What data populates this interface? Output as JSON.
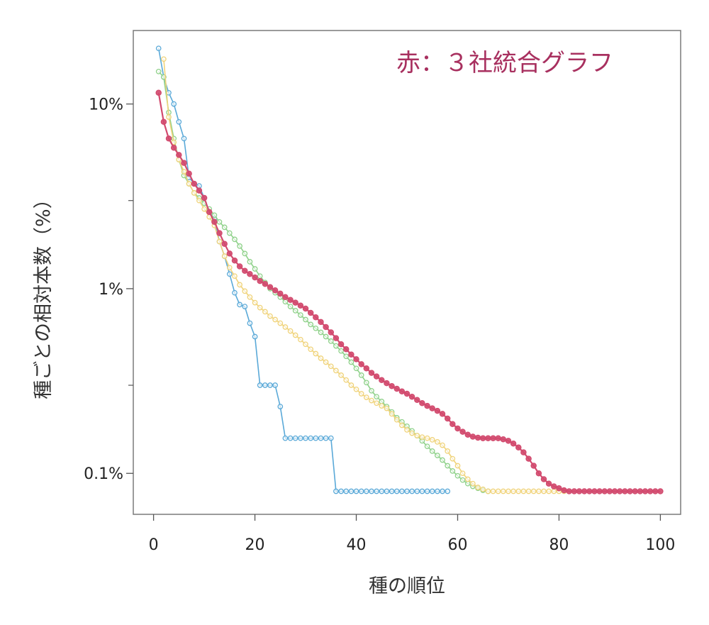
{
  "chart_data": {
    "type": "line",
    "title": "",
    "annotation": "赤：３社統合グラフ",
    "annotation_color": "#a8305f",
    "xlabel": "種の順位",
    "ylabel": "種ごとの相対本数（%）",
    "xlim": [
      -4,
      104
    ],
    "ylim": [
      0.06,
      25
    ],
    "yscale": "log",
    "xticks": [
      0,
      20,
      40,
      60,
      80,
      100
    ],
    "xtick_labels": [
      "0",
      "20",
      "40",
      "60",
      "80",
      "100"
    ],
    "yticks": [
      0.1,
      1,
      10
    ],
    "ytick_labels": [
      "0.1%",
      "1%",
      "10%"
    ],
    "grid": false,
    "series": [
      {
        "color": "#5aa9d8",
        "points": [
          [
            1,
            20
          ],
          [
            2,
            14
          ],
          [
            3,
            11.5
          ],
          [
            4,
            10
          ],
          [
            5,
            8
          ],
          [
            6,
            6.5
          ],
          [
            7,
            4
          ],
          [
            8,
            3.7
          ],
          [
            9,
            3.6
          ],
          [
            10,
            3.1
          ],
          [
            11,
            2.6
          ],
          [
            12,
            2.4
          ],
          [
            13,
            1.8
          ],
          [
            14,
            1.5
          ],
          [
            15,
            1.2
          ],
          [
            16,
            0.95
          ],
          [
            17,
            0.82
          ],
          [
            18,
            0.8
          ],
          [
            19,
            0.65
          ],
          [
            20,
            0.55
          ],
          [
            21,
            0.3
          ],
          [
            22,
            0.3
          ],
          [
            23,
            0.3
          ],
          [
            24,
            0.3
          ],
          [
            25,
            0.23
          ],
          [
            26,
            0.155
          ],
          [
            27,
            0.155
          ],
          [
            28,
            0.155
          ],
          [
            29,
            0.155
          ],
          [
            30,
            0.155
          ],
          [
            31,
            0.155
          ],
          [
            32,
            0.155
          ],
          [
            33,
            0.155
          ],
          [
            34,
            0.155
          ],
          [
            35,
            0.155
          ],
          [
            36,
            0.08
          ],
          [
            37,
            0.08
          ],
          [
            38,
            0.08
          ],
          [
            39,
            0.08
          ],
          [
            40,
            0.08
          ],
          [
            41,
            0.08
          ],
          [
            42,
            0.08
          ],
          [
            43,
            0.08
          ],
          [
            44,
            0.08
          ],
          [
            45,
            0.08
          ],
          [
            46,
            0.08
          ],
          [
            47,
            0.08
          ],
          [
            48,
            0.08
          ],
          [
            49,
            0.08
          ],
          [
            50,
            0.08
          ],
          [
            51,
            0.08
          ],
          [
            52,
            0.08
          ],
          [
            53,
            0.08
          ],
          [
            54,
            0.08
          ],
          [
            55,
            0.08
          ],
          [
            56,
            0.08
          ],
          [
            57,
            0.08
          ],
          [
            58,
            0.08
          ]
        ]
      },
      {
        "color": "#8fd18a",
        "points": [
          [
            1,
            15
          ],
          [
            2,
            14
          ],
          [
            3,
            9
          ],
          [
            4,
            6.5
          ],
          [
            5,
            5
          ],
          [
            6,
            4.1
          ],
          [
            7,
            3.7
          ],
          [
            8,
            3.3
          ],
          [
            9,
            3.1
          ],
          [
            10,
            2.9
          ],
          [
            11,
            2.7
          ],
          [
            12,
            2.5
          ],
          [
            13,
            2.3
          ],
          [
            14,
            2.15
          ],
          [
            15,
            2.0
          ],
          [
            16,
            1.85
          ],
          [
            17,
            1.7
          ],
          [
            18,
            1.55
          ],
          [
            19,
            1.4
          ],
          [
            20,
            1.28
          ],
          [
            21,
            1.17
          ],
          [
            22,
            1.08
          ],
          [
            23,
            1.0
          ],
          [
            24,
            0.95
          ],
          [
            25,
            0.9
          ],
          [
            26,
            0.85
          ],
          [
            27,
            0.8
          ],
          [
            28,
            0.76
          ],
          [
            29,
            0.72
          ],
          [
            30,
            0.68
          ],
          [
            31,
            0.64
          ],
          [
            32,
            0.61
          ],
          [
            33,
            0.58
          ],
          [
            34,
            0.55
          ],
          [
            35,
            0.52
          ],
          [
            36,
            0.49
          ],
          [
            37,
            0.46
          ],
          [
            38,
            0.43
          ],
          [
            39,
            0.4
          ],
          [
            40,
            0.37
          ],
          [
            41,
            0.34
          ],
          [
            42,
            0.31
          ],
          [
            43,
            0.28
          ],
          [
            44,
            0.26
          ],
          [
            45,
            0.245
          ],
          [
            46,
            0.23
          ],
          [
            47,
            0.215
          ],
          [
            48,
            0.2
          ],
          [
            49,
            0.19
          ],
          [
            50,
            0.18
          ],
          [
            51,
            0.17
          ],
          [
            52,
            0.16
          ],
          [
            53,
            0.15
          ],
          [
            54,
            0.14
          ],
          [
            55,
            0.132
          ],
          [
            56,
            0.125
          ],
          [
            57,
            0.118
          ],
          [
            58,
            0.11
          ],
          [
            59,
            0.103
          ],
          [
            60,
            0.097
          ],
          [
            61,
            0.092
          ],
          [
            62,
            0.088
          ],
          [
            63,
            0.085
          ],
          [
            64,
            0.083
          ],
          [
            65,
            0.081
          ],
          [
            66,
            0.08
          ]
        ]
      },
      {
        "color": "#f0d37a",
        "points": [
          [
            2,
            17.5
          ],
          [
            3,
            8.5
          ],
          [
            4,
            6.2
          ],
          [
            5,
            5.0
          ],
          [
            6,
            4.3
          ],
          [
            7,
            3.7
          ],
          [
            8,
            3.3
          ],
          [
            9,
            3.0
          ],
          [
            10,
            2.7
          ],
          [
            11,
            2.45
          ],
          [
            12,
            2.2
          ],
          [
            13,
            1.8
          ],
          [
            14,
            1.5
          ],
          [
            15,
            1.3
          ],
          [
            16,
            1.17
          ],
          [
            17,
            1.05
          ],
          [
            18,
            0.97
          ],
          [
            19,
            0.9
          ],
          [
            20,
            0.84
          ],
          [
            21,
            0.79
          ],
          [
            22,
            0.75
          ],
          [
            23,
            0.71
          ],
          [
            24,
            0.68
          ],
          [
            25,
            0.65
          ],
          [
            26,
            0.62
          ],
          [
            27,
            0.59
          ],
          [
            28,
            0.56
          ],
          [
            29,
            0.53
          ],
          [
            30,
            0.5
          ],
          [
            31,
            0.47
          ],
          [
            32,
            0.445
          ],
          [
            33,
            0.42
          ],
          [
            34,
            0.4
          ],
          [
            35,
            0.38
          ],
          [
            36,
            0.36
          ],
          [
            37,
            0.34
          ],
          [
            38,
            0.32
          ],
          [
            39,
            0.3
          ],
          [
            40,
            0.285
          ],
          [
            41,
            0.27
          ],
          [
            42,
            0.258
          ],
          [
            43,
            0.248
          ],
          [
            44,
            0.24
          ],
          [
            45,
            0.232
          ],
          [
            46,
            0.225
          ],
          [
            47,
            0.21
          ],
          [
            48,
            0.195
          ],
          [
            49,
            0.182
          ],
          [
            50,
            0.172
          ],
          [
            51,
            0.165
          ],
          [
            52,
            0.16
          ],
          [
            53,
            0.157
          ],
          [
            54,
            0.155
          ],
          [
            55,
            0.152
          ],
          [
            56,
            0.148
          ],
          [
            57,
            0.142
          ],
          [
            58,
            0.132
          ],
          [
            59,
            0.12
          ],
          [
            60,
            0.11
          ],
          [
            61,
            0.1
          ],
          [
            62,
            0.093
          ],
          [
            63,
            0.088
          ],
          [
            64,
            0.084
          ],
          [
            65,
            0.082
          ],
          [
            66,
            0.08
          ],
          [
            67,
            0.08
          ],
          [
            68,
            0.08
          ],
          [
            69,
            0.08
          ],
          [
            70,
            0.08
          ],
          [
            71,
            0.08
          ],
          [
            72,
            0.08
          ],
          [
            73,
            0.08
          ],
          [
            74,
            0.08
          ],
          [
            75,
            0.08
          ],
          [
            76,
            0.08
          ],
          [
            77,
            0.08
          ],
          [
            78,
            0.08
          ],
          [
            79,
            0.08
          ],
          [
            80,
            0.08
          ],
          [
            81,
            0.08
          ]
        ]
      },
      {
        "color": "#d24a6e",
        "points": [
          [
            1,
            11.5
          ],
          [
            2,
            8
          ],
          [
            3,
            6.5
          ],
          [
            4,
            5.8
          ],
          [
            5,
            5.3
          ],
          [
            6,
            4.8
          ],
          [
            7,
            4.2
          ],
          [
            8,
            3.7
          ],
          [
            9,
            3.4
          ],
          [
            10,
            3.1
          ],
          [
            11,
            2.6
          ],
          [
            12,
            2.3
          ],
          [
            13,
            2.0
          ],
          [
            14,
            1.75
          ],
          [
            15,
            1.55
          ],
          [
            16,
            1.42
          ],
          [
            17,
            1.32
          ],
          [
            18,
            1.25
          ],
          [
            19,
            1.2
          ],
          [
            20,
            1.15
          ],
          [
            21,
            1.1
          ],
          [
            22,
            1.06
          ],
          [
            23,
            1.02
          ],
          [
            24,
            0.98
          ],
          [
            25,
            0.94
          ],
          [
            26,
            0.9
          ],
          [
            27,
            0.87
          ],
          [
            28,
            0.84
          ],
          [
            29,
            0.81
          ],
          [
            30,
            0.78
          ],
          [
            31,
            0.74
          ],
          [
            32,
            0.7
          ],
          [
            33,
            0.66
          ],
          [
            34,
            0.62
          ],
          [
            35,
            0.58
          ],
          [
            36,
            0.54
          ],
          [
            37,
            0.5
          ],
          [
            38,
            0.47
          ],
          [
            39,
            0.44
          ],
          [
            40,
            0.415
          ],
          [
            41,
            0.39
          ],
          [
            42,
            0.37
          ],
          [
            43,
            0.35
          ],
          [
            44,
            0.335
          ],
          [
            45,
            0.32
          ],
          [
            46,
            0.308
          ],
          [
            47,
            0.297
          ],
          [
            48,
            0.287
          ],
          [
            49,
            0.278
          ],
          [
            50,
            0.27
          ],
          [
            51,
            0.26
          ],
          [
            52,
            0.25
          ],
          [
            53,
            0.24
          ],
          [
            54,
            0.232
          ],
          [
            55,
            0.225
          ],
          [
            56,
            0.218
          ],
          [
            57,
            0.21
          ],
          [
            58,
            0.198
          ],
          [
            59,
            0.185
          ],
          [
            60,
            0.175
          ],
          [
            61,
            0.168
          ],
          [
            62,
            0.162
          ],
          [
            63,
            0.158
          ],
          [
            64,
            0.156
          ],
          [
            65,
            0.155
          ],
          [
            66,
            0.155
          ],
          [
            67,
            0.155
          ],
          [
            68,
            0.155
          ],
          [
            69,
            0.153
          ],
          [
            70,
            0.15
          ],
          [
            71,
            0.145
          ],
          [
            72,
            0.138
          ],
          [
            73,
            0.13
          ],
          [
            74,
            0.12
          ],
          [
            75,
            0.11
          ],
          [
            76,
            0.1
          ],
          [
            77,
            0.093
          ],
          [
            78,
            0.088
          ],
          [
            79,
            0.085
          ],
          [
            80,
            0.083
          ],
          [
            81,
            0.081
          ],
          [
            82,
            0.08
          ],
          [
            83,
            0.08
          ],
          [
            84,
            0.08
          ],
          [
            85,
            0.08
          ],
          [
            86,
            0.08
          ],
          [
            87,
            0.08
          ],
          [
            88,
            0.08
          ],
          [
            89,
            0.08
          ],
          [
            90,
            0.08
          ],
          [
            91,
            0.08
          ],
          [
            92,
            0.08
          ],
          [
            93,
            0.08
          ],
          [
            94,
            0.08
          ],
          [
            95,
            0.08
          ],
          [
            96,
            0.08
          ],
          [
            97,
            0.08
          ],
          [
            98,
            0.08
          ],
          [
            99,
            0.08
          ],
          [
            100,
            0.08
          ]
        ]
      }
    ]
  }
}
